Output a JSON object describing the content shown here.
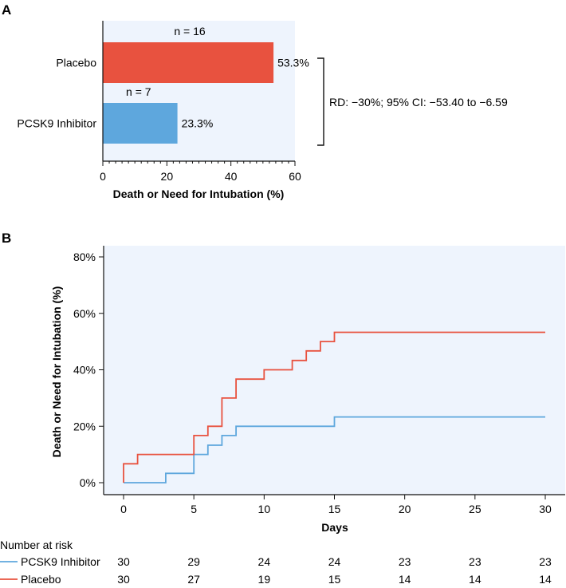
{
  "chart_data": [
    {
      "panel": "A",
      "type": "bar",
      "orientation": "horizontal",
      "categories": [
        "Placebo",
        "PCSK9 Inhibitor"
      ],
      "values": [
        53.3,
        23.3
      ],
      "value_labels": [
        "53.3%",
        "23.3%"
      ],
      "n_labels": [
        "n = 16",
        "n = 7"
      ],
      "xlabel": "Death or Need for Intubation (%)",
      "xlim": [
        0,
        60
      ],
      "xticks": [
        "0",
        "20",
        "40",
        "60"
      ],
      "bracket_label": "RD: −30%; 95% CI: −53.40 to −6.59",
      "colors": [
        "#e8523f",
        "#5ea7dd"
      ]
    },
    {
      "panel": "B",
      "type": "line",
      "step": true,
      "xlabel": "Days",
      "ylabel": "Death or Need for Intubation (%)",
      "xlim": [
        0,
        30
      ],
      "ylim": [
        0,
        80
      ],
      "xticks": [
        "0",
        "5",
        "10",
        "15",
        "20",
        "25",
        "30"
      ],
      "yticks": [
        "0%",
        "20%",
        "40%",
        "60%",
        "80%"
      ],
      "series": [
        {
          "name": "PCSK9 Inhibitor",
          "color": "#5ea7dd",
          "points": [
            [
              0,
              0
            ],
            [
              3,
              0
            ],
            [
              3,
              3.3
            ],
            [
              5,
              3.3
            ],
            [
              5,
              6.7
            ],
            [
              5,
              10
            ],
            [
              6,
              10
            ],
            [
              6,
              13.3
            ],
            [
              7,
              13.3
            ],
            [
              7,
              16.7
            ],
            [
              8,
              16.7
            ],
            [
              8,
              20
            ],
            [
              15,
              20
            ],
            [
              15,
              23.3
            ],
            [
              30,
              23.3
            ]
          ]
        },
        {
          "name": "Placebo",
          "color": "#e8523f",
          "points": [
            [
              0,
              0
            ],
            [
              0,
              6.7
            ],
            [
              1,
              6.7
            ],
            [
              1,
              10
            ],
            [
              5,
              10
            ],
            [
              5,
              16.7
            ],
            [
              6,
              16.7
            ],
            [
              6,
              20
            ],
            [
              7,
              20
            ],
            [
              7,
              30
            ],
            [
              8,
              30
            ],
            [
              8,
              36.7
            ],
            [
              10,
              36.7
            ],
            [
              10,
              40
            ],
            [
              12,
              40
            ],
            [
              12,
              43.3
            ],
            [
              13,
              43.3
            ],
            [
              13,
              46.7
            ],
            [
              14,
              46.7
            ],
            [
              14,
              50
            ],
            [
              15,
              50
            ],
            [
              15,
              53.3
            ],
            [
              30,
              53.3
            ]
          ]
        }
      ],
      "risk_table": {
        "title": "Number at risk",
        "rows": [
          {
            "name": "PCSK9 Inhibitor",
            "color": "#5ea7dd",
            "values": [
              "30",
              "29",
              "24",
              "24",
              "23",
              "23",
              "23"
            ]
          },
          {
            "name": "Placebo",
            "color": "#e8523f",
            "values": [
              "30",
              "27",
              "19",
              "15",
              "14",
              "14",
              "14"
            ]
          }
        ]
      }
    }
  ],
  "panel_labels": [
    "A",
    "B"
  ]
}
